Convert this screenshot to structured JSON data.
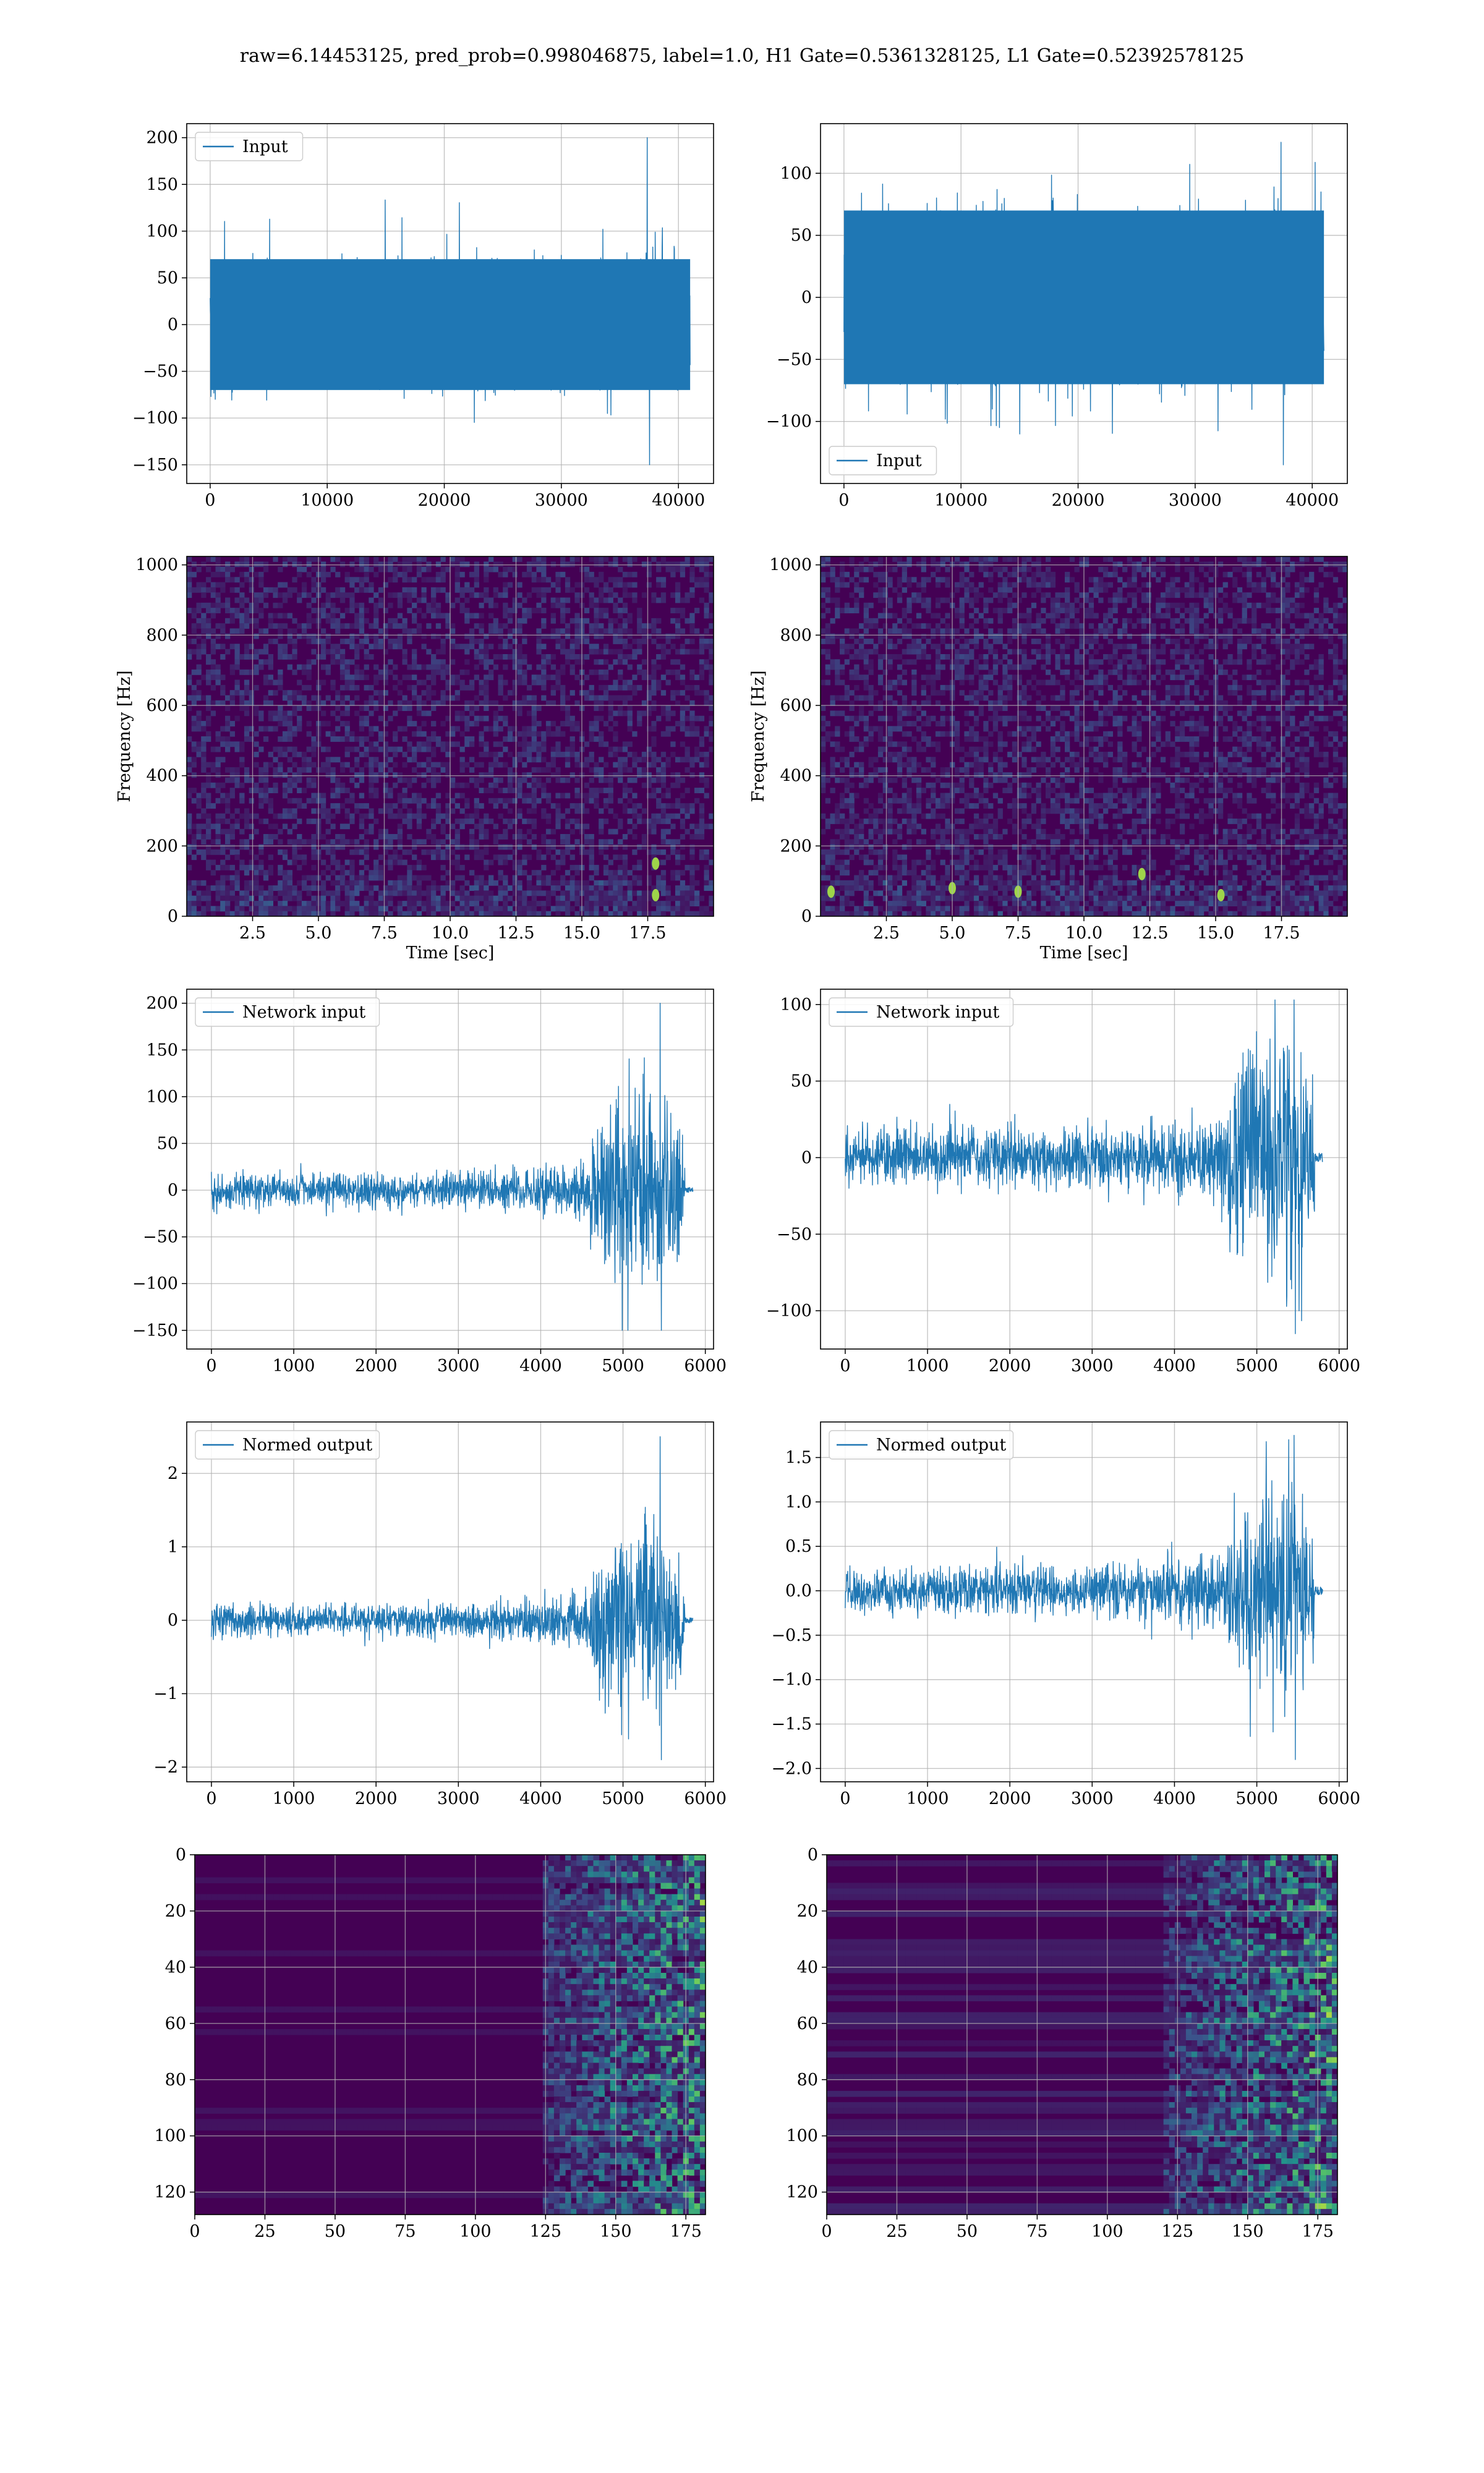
{
  "figure": {
    "title": "raw=6.14453125, pred_prob=0.998046875, label=1.0, H1 Gate=0.5361328125, L1 Gate=0.52392578125"
  },
  "colors": {
    "series": "#1f77b4",
    "grid": "#b0b0b0",
    "axis": "#000000",
    "viridis_low": "#440154",
    "viridis_mid": "#21918c",
    "viridis_high": "#fde725"
  },
  "chart_data": [
    {
      "id": "h1-input",
      "type": "line",
      "series_kind": "noise",
      "legend_position": "upper-left",
      "series": [
        {
          "name": "Input"
        }
      ],
      "xlim": [
        -2000,
        43000
      ],
      "ylim": [
        -170,
        215
      ],
      "xticks": [
        0,
        10000,
        20000,
        30000,
        40000
      ],
      "yticks": [
        -150,
        -100,
        -50,
        0,
        50,
        100,
        150,
        200
      ],
      "sample_points": [
        {
          "x": 0,
          "y": 0
        },
        {
          "x": 10000,
          "y": 0
        },
        {
          "x": 20000,
          "y": 0
        },
        {
          "x": 30000,
          "y": 0
        },
        {
          "x": 40000,
          "y": 0
        }
      ],
      "envelope": {
        "x_range": [
          0,
          41000
        ],
        "core_amplitude": 70,
        "peak_max": 200,
        "peak_min": -150
      },
      "grid": true
    },
    {
      "id": "l1-input",
      "type": "line",
      "series_kind": "noise",
      "legend_position": "lower-left",
      "series": [
        {
          "name": "Input"
        }
      ],
      "xlim": [
        -2000,
        43000
      ],
      "ylim": [
        -150,
        140
      ],
      "xticks": [
        0,
        10000,
        20000,
        30000,
        40000
      ],
      "yticks": [
        -100,
        -50,
        0,
        50,
        100
      ],
      "sample_points": [
        {
          "x": 0,
          "y": 0
        },
        {
          "x": 10000,
          "y": 0
        },
        {
          "x": 20000,
          "y": 0
        },
        {
          "x": 30000,
          "y": 0
        },
        {
          "x": 40000,
          "y": 0
        }
      ],
      "envelope": {
        "x_range": [
          0,
          41000
        ],
        "core_amplitude": 70,
        "peak_max": 125,
        "peak_min": -135
      },
      "grid": true
    },
    {
      "id": "h1-spectrogram",
      "type": "heatmap",
      "xlabel": "Time [sec]",
      "ylabel": "Frequency [Hz]",
      "xlim": [
        0,
        20
      ],
      "ylim": [
        0,
        1024
      ],
      "xticks": [
        2.5,
        5.0,
        7.5,
        10.0,
        12.5,
        15.0,
        17.5
      ],
      "yticks": [
        0,
        200,
        400,
        600,
        800,
        1000
      ],
      "hotspots": [
        {
          "x": 17.8,
          "y": 60
        },
        {
          "x": 17.8,
          "y": 150
        }
      ],
      "grid": true
    },
    {
      "id": "l1-spectrogram",
      "type": "heatmap",
      "xlabel": "Time [sec]",
      "ylabel": "Frequency [Hz]",
      "xlim": [
        0,
        20
      ],
      "ylim": [
        0,
        1024
      ],
      "xticks": [
        2.5,
        5.0,
        7.5,
        10.0,
        12.5,
        15.0,
        17.5
      ],
      "yticks": [
        0,
        200,
        400,
        600,
        800,
        1000
      ],
      "hotspots": [
        {
          "x": 0.4,
          "y": 70
        },
        {
          "x": 5.0,
          "y": 80
        },
        {
          "x": 7.5,
          "y": 70
        },
        {
          "x": 12.2,
          "y": 120
        },
        {
          "x": 15.2,
          "y": 60
        }
      ],
      "grid": true
    },
    {
      "id": "h1-network-input",
      "type": "line",
      "series_kind": "chirp",
      "legend_position": "upper-left",
      "series": [
        {
          "name": "Network input"
        }
      ],
      "xlim": [
        -300,
        6100
      ],
      "ylim": [
        -170,
        215
      ],
      "xticks": [
        0,
        1000,
        2000,
        3000,
        4000,
        5000,
        6000
      ],
      "yticks": [
        -150,
        -100,
        -50,
        0,
        50,
        100,
        150,
        200
      ],
      "envelope": {
        "x_end": 5750,
        "tail_end": 5850,
        "base_amplitude": 15,
        "burst_start": 4600,
        "burst_amplitude": 75,
        "peak_max": 200,
        "peak_min": -150
      },
      "grid": true
    },
    {
      "id": "l1-network-input",
      "type": "line",
      "series_kind": "chirp",
      "legend_position": "upper-left",
      "series": [
        {
          "name": "Network input"
        }
      ],
      "xlim": [
        -300,
        6100
      ],
      "ylim": [
        -125,
        110
      ],
      "xticks": [
        0,
        1000,
        2000,
        3000,
        4000,
        5000,
        6000
      ],
      "yticks": [
        -100,
        -50,
        0,
        50,
        100
      ],
      "envelope": {
        "x_end": 5700,
        "tail_end": 5800,
        "base_amplitude": 15,
        "burst_start": 4650,
        "burst_amplitude": 55,
        "peak_max": 103,
        "peak_min": -115
      },
      "grid": true
    },
    {
      "id": "h1-normed-output",
      "type": "line",
      "series_kind": "chirp",
      "legend_position": "upper-left",
      "series": [
        {
          "name": "Normed output"
        }
      ],
      "xlim": [
        -300,
        6100
      ],
      "ylim": [
        -2.2,
        2.7
      ],
      "xticks": [
        0,
        1000,
        2000,
        3000,
        4000,
        5000,
        6000
      ],
      "yticks": [
        -2,
        -1,
        0,
        1,
        2
      ],
      "envelope": {
        "x_end": 5750,
        "tail_end": 5850,
        "base_amplitude": 0.18,
        "burst_start": 4600,
        "burst_amplitude": 0.9,
        "peak_max": 2.5,
        "peak_min": -1.9
      },
      "grid": true
    },
    {
      "id": "l1-normed-output",
      "type": "line",
      "series_kind": "chirp",
      "legend_position": "upper-left",
      "series": [
        {
          "name": "Normed output"
        }
      ],
      "xlim": [
        -300,
        6100
      ],
      "ylim": [
        -2.15,
        1.9
      ],
      "xticks": [
        0,
        1000,
        2000,
        3000,
        4000,
        5000,
        6000
      ],
      "yticks": [
        -2.0,
        -1.5,
        -1.0,
        -0.5,
        0.0,
        0.5,
        1.0,
        1.5
      ],
      "envelope": {
        "x_end": 5700,
        "tail_end": 5800,
        "base_amplitude": 0.22,
        "burst_start": 4650,
        "burst_amplitude": 0.8,
        "peak_max": 1.75,
        "peak_min": -1.9
      },
      "grid": true
    },
    {
      "id": "h1-feature-map",
      "type": "heatmap",
      "xlim": [
        0,
        182
      ],
      "ylim": [
        128,
        0
      ],
      "xticks": [
        0,
        25,
        50,
        75,
        100,
        125,
        150,
        175
      ],
      "yticks": [
        0,
        20,
        40,
        60,
        80,
        100,
        120
      ],
      "rows": 128,
      "cols": 182,
      "activity_onset": 125,
      "grid": true
    },
    {
      "id": "l1-feature-map",
      "type": "heatmap",
      "xlim": [
        0,
        182
      ],
      "ylim": [
        128,
        0
      ],
      "xticks": [
        0,
        25,
        50,
        75,
        100,
        125,
        150,
        175
      ],
      "yticks": [
        0,
        20,
        40,
        60,
        80,
        100,
        120
      ],
      "rows": 128,
      "cols": 182,
      "activity_onset": 120,
      "grid": true
    }
  ]
}
